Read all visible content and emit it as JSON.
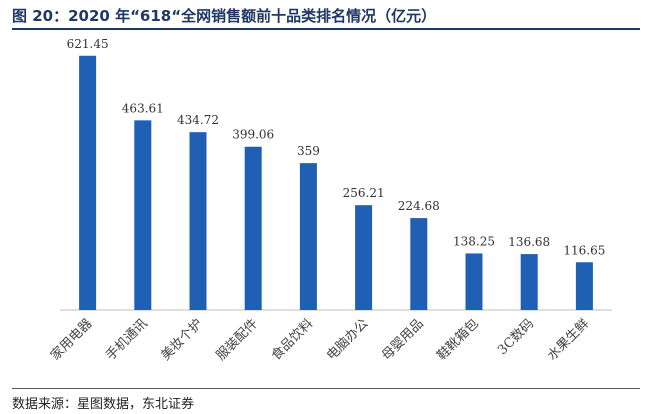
{
  "figure": {
    "title": "图 20：2020 年“618“全网销售额前十品类排名情况（亿元）",
    "source": "数据来源：星图数据，东北证券"
  },
  "chart_data": {
    "type": "bar",
    "categories": [
      "家用电器",
      "手机通讯",
      "美妆个护",
      "服装配件",
      "食品饮料",
      "电脑办公",
      "母婴用品",
      "鞋靴箱包",
      "3C数码",
      "水果生鲜"
    ],
    "values": [
      621.45,
      463.61,
      434.72,
      399.06,
      359,
      256.21,
      224.68,
      138.25,
      136.68,
      116.65
    ],
    "value_labels": [
      "621.45",
      "463.61",
      "434.72",
      "399.06",
      "359",
      "256.21",
      "224.68",
      "138.25",
      "136.68",
      "116.65"
    ],
    "ylim": [
      0,
      660
    ],
    "grid": false,
    "bar_color": "#1f5fb4"
  }
}
